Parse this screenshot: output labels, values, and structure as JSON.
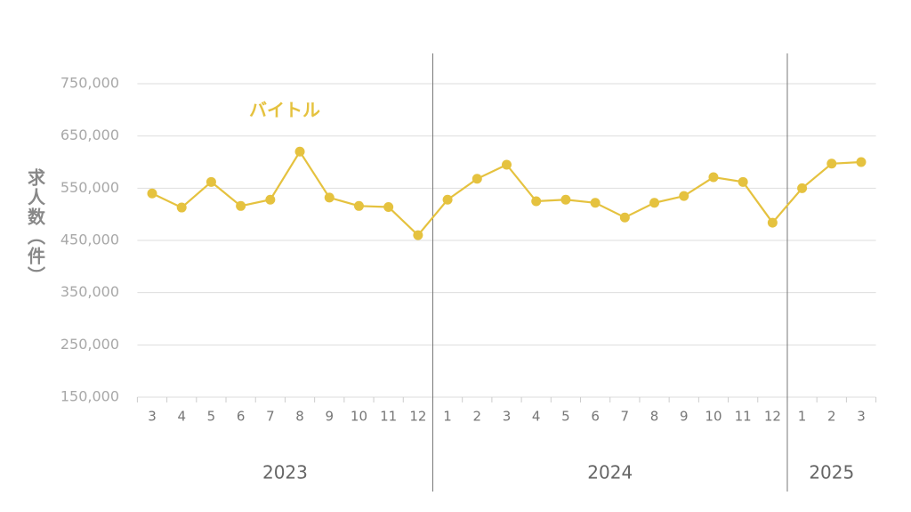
{
  "chart_data": {
    "type": "line",
    "y_label": "求人数（件）",
    "categories": [
      "3",
      "4",
      "5",
      "6",
      "7",
      "8",
      "9",
      "10",
      "11",
      "12",
      "1",
      "2",
      "3",
      "4",
      "5",
      "6",
      "7",
      "8",
      "9",
      "10",
      "11",
      "12",
      "1",
      "2",
      "3"
    ],
    "year_groups": [
      "2023",
      "2024",
      "2025"
    ],
    "series": [
      {
        "name": "バイトル",
        "color": "#e5c23f",
        "values": [
          540000,
          513000,
          562000,
          516000,
          528000,
          620000,
          532000,
          516000,
          514000,
          460000,
          528000,
          568000,
          595000,
          525000,
          528000,
          522000,
          494000,
          522000,
          535000,
          571000,
          562000,
          484000,
          550000,
          597000,
          600000
        ]
      }
    ],
    "ylim": [
      150000,
      800000
    ],
    "yticks": [
      {
        "value": 150000,
        "label": "150,000"
      },
      {
        "value": 250000,
        "label": "250,000"
      },
      {
        "value": 350000,
        "label": "350,000"
      },
      {
        "value": 450000,
        "label": "450,000"
      },
      {
        "value": 550000,
        "label": "550,000"
      },
      {
        "value": 650000,
        "label": "650,000"
      },
      {
        "value": 750000,
        "label": "750,000"
      }
    ],
    "grid": true
  }
}
